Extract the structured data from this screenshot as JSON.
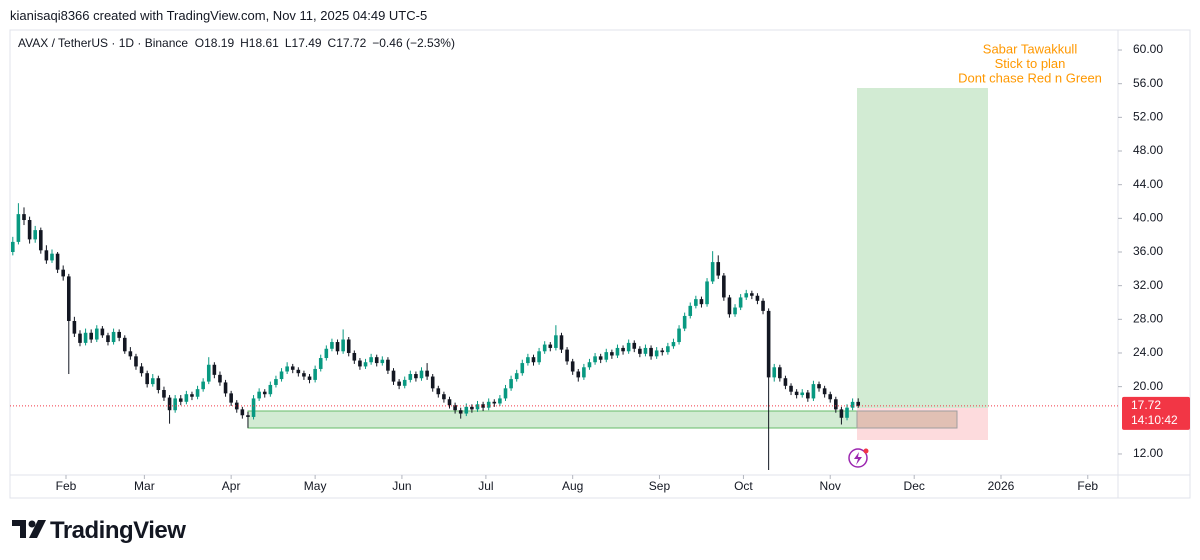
{
  "header": {
    "credit": "kianisaqi8366 created with TradingView.com, Nov 11, 2025 04:49 UTC-5",
    "symbol": "AVAX / TetherUS · 1D · Binance",
    "ohlc": [
      {
        "label": "O",
        "value": 18.19
      },
      {
        "label": "H",
        "value": 18.61
      },
      {
        "label": "L",
        "value": 17.49
      },
      {
        "label": "C",
        "value": 17.72
      }
    ],
    "change": "−0.46 (−2.53%)"
  },
  "footer": {
    "logo": "TradingView"
  },
  "chart_data": {
    "type": "candlestick",
    "annotation": [
      "Sabar Tawakkull",
      "Stick to plan",
      "Dont chase Red n Green"
    ],
    "up_color": "#089981",
    "down_color": "#131722",
    "annotation_color": "#ff9800",
    "last_price": 17.72,
    "countdown": "14:10:42",
    "last_price_color": "#f23645",
    "ylim": [
      9.5,
      62.38
    ],
    "yticks": [
      {
        "value": 12,
        "label": "12.00"
      },
      {
        "value": 20,
        "label": "20.00"
      },
      {
        "value": 24,
        "label": "24.00"
      },
      {
        "value": 28,
        "label": "28.00"
      },
      {
        "value": 32,
        "label": "32.00"
      },
      {
        "value": 36,
        "label": "36.00"
      },
      {
        "value": 40,
        "label": "40.00"
      },
      {
        "value": 44,
        "label": "44.00"
      },
      {
        "value": 48,
        "label": "48.00"
      },
      {
        "value": 52,
        "label": "52.00"
      },
      {
        "value": 56,
        "label": "56.00"
      },
      {
        "value": 60,
        "label": "60.00"
      }
    ],
    "xlim": [
      -0.5,
      197.4
    ],
    "xticks": [
      {
        "value": 9.5,
        "label": "Feb"
      },
      {
        "value": 23.5,
        "label": "Mar"
      },
      {
        "value": 39,
        "label": "Apr"
      },
      {
        "value": 54,
        "label": "May"
      },
      {
        "value": 69.5,
        "label": "Jun"
      },
      {
        "value": 84.5,
        "label": "Jul"
      },
      {
        "value": 100,
        "label": "Aug"
      },
      {
        "value": 115.5,
        "label": "Sep"
      },
      {
        "value": 130.5,
        "label": "Oct"
      },
      {
        "value": 146,
        "label": "Nov"
      },
      {
        "value": 161,
        "label": "Dec"
      },
      {
        "value": 176.5,
        "label": "2026"
      },
      {
        "value": 192,
        "label": "Feb"
      }
    ],
    "ohlc": [
      [
        36.0,
        37.8,
        35.6,
        37.2
      ],
      [
        37.2,
        41.8,
        36.9,
        40.5
      ],
      [
        40.5,
        41.3,
        39.2,
        39.8
      ],
      [
        39.8,
        40.2,
        37.0,
        37.5
      ],
      [
        37.5,
        39.1,
        37.1,
        38.6
      ],
      [
        38.6,
        38.9,
        35.8,
        36.2
      ],
      [
        36.2,
        36.8,
        34.6,
        35.0
      ],
      [
        35.0,
        36.3,
        34.7,
        35.8
      ],
      [
        35.8,
        36.0,
        33.5,
        33.9
      ],
      [
        33.9,
        34.4,
        32.6,
        33.1
      ],
      [
        33.1,
        33.4,
        21.5,
        27.8
      ],
      [
        27.8,
        28.3,
        25.9,
        26.3
      ],
      [
        26.3,
        26.7,
        24.8,
        25.2
      ],
      [
        25.2,
        26.9,
        24.9,
        26.4
      ],
      [
        26.4,
        26.8,
        25.2,
        25.6
      ],
      [
        25.6,
        27.3,
        25.3,
        26.9
      ],
      [
        26.9,
        27.2,
        25.8,
        26.1
      ],
      [
        26.1,
        26.4,
        24.9,
        25.3
      ],
      [
        25.3,
        26.9,
        25.0,
        26.5
      ],
      [
        26.5,
        26.8,
        25.4,
        25.8
      ],
      [
        25.8,
        26.1,
        23.9,
        24.2
      ],
      [
        24.2,
        24.7,
        23.2,
        23.6
      ],
      [
        23.6,
        23.9,
        22.0,
        22.4
      ],
      [
        22.4,
        22.8,
        21.2,
        21.6
      ],
      [
        21.6,
        21.9,
        19.9,
        20.3
      ],
      [
        20.3,
        21.5,
        20.0,
        21.0
      ],
      [
        21.0,
        21.3,
        19.2,
        19.6
      ],
      [
        19.6,
        20.0,
        18.3,
        18.7
      ],
      [
        18.7,
        19.0,
        15.6,
        17.2
      ],
      [
        17.2,
        19.0,
        16.9,
        18.6
      ],
      [
        18.6,
        19.0,
        17.8,
        18.2
      ],
      [
        18.2,
        19.5,
        17.9,
        19.1
      ],
      [
        19.1,
        19.4,
        18.4,
        18.8
      ],
      [
        18.8,
        20.1,
        18.5,
        19.7
      ],
      [
        19.7,
        21.0,
        19.4,
        20.6
      ],
      [
        20.6,
        23.5,
        20.3,
        22.6
      ],
      [
        22.6,
        22.9,
        21.0,
        21.4
      ],
      [
        21.4,
        21.8,
        20.1,
        20.5
      ],
      [
        20.5,
        20.8,
        18.8,
        19.2
      ],
      [
        19.2,
        19.5,
        17.7,
        18.1
      ],
      [
        18.1,
        18.4,
        16.9,
        17.3
      ],
      [
        17.3,
        17.6,
        16.2,
        16.6
      ],
      [
        16.6,
        17.0,
        15.1,
        16.4
      ],
      [
        16.4,
        19.0,
        16.1,
        18.6
      ],
      [
        18.6,
        19.8,
        18.3,
        19.4
      ],
      [
        19.4,
        19.7,
        18.7,
        19.1
      ],
      [
        19.1,
        20.6,
        18.8,
        20.2
      ],
      [
        20.2,
        21.3,
        19.9,
        20.9
      ],
      [
        20.9,
        22.2,
        20.6,
        21.8
      ],
      [
        21.8,
        22.9,
        21.5,
        22.4
      ],
      [
        22.4,
        22.7,
        21.6,
        22.0
      ],
      [
        22.0,
        22.3,
        21.2,
        21.6
      ],
      [
        21.6,
        21.9,
        20.8,
        21.2
      ],
      [
        21.2,
        21.5,
        20.4,
        20.8
      ],
      [
        20.8,
        22.5,
        20.5,
        22.1
      ],
      [
        22.1,
        23.8,
        21.8,
        23.4
      ],
      [
        23.4,
        24.9,
        23.1,
        24.5
      ],
      [
        24.5,
        25.7,
        24.2,
        25.3
      ],
      [
        25.3,
        25.6,
        23.8,
        24.2
      ],
      [
        24.2,
        26.8,
        23.9,
        25.6
      ],
      [
        25.6,
        25.9,
        23.6,
        24.0
      ],
      [
        24.0,
        24.3,
        22.7,
        23.1
      ],
      [
        23.1,
        23.4,
        22.0,
        22.4
      ],
      [
        22.4,
        23.3,
        22.1,
        22.9
      ],
      [
        22.9,
        23.9,
        22.6,
        23.5
      ],
      [
        23.5,
        23.8,
        22.4,
        22.8
      ],
      [
        22.8,
        23.6,
        22.5,
        23.2
      ],
      [
        23.2,
        23.5,
        21.5,
        21.9
      ],
      [
        21.9,
        22.2,
        20.2,
        20.6
      ],
      [
        20.6,
        20.9,
        19.7,
        20.1
      ],
      [
        20.1,
        21.2,
        19.8,
        20.8
      ],
      [
        20.8,
        21.9,
        20.5,
        21.5
      ],
      [
        21.5,
        21.8,
        20.6,
        21.0
      ],
      [
        21.0,
        22.3,
        20.7,
        21.9
      ],
      [
        21.9,
        22.8,
        20.8,
        21.2
      ],
      [
        21.2,
        21.5,
        19.4,
        19.8
      ],
      [
        19.8,
        20.1,
        18.7,
        19.1
      ],
      [
        19.1,
        19.4,
        18.1,
        18.5
      ],
      [
        18.5,
        18.8,
        17.4,
        17.8
      ],
      [
        17.8,
        18.1,
        16.8,
        17.2
      ],
      [
        17.2,
        17.5,
        16.2,
        16.8
      ],
      [
        16.8,
        18.0,
        16.5,
        17.6
      ],
      [
        17.6,
        17.9,
        16.9,
        17.3
      ],
      [
        17.3,
        18.3,
        17.0,
        17.9
      ],
      [
        17.9,
        18.2,
        17.1,
        17.5
      ],
      [
        17.5,
        18.6,
        17.2,
        18.2
      ],
      [
        18.2,
        18.5,
        17.6,
        18.0
      ],
      [
        18.0,
        19.0,
        17.7,
        18.6
      ],
      [
        18.6,
        20.2,
        18.3,
        19.8
      ],
      [
        19.8,
        21.3,
        19.5,
        20.9
      ],
      [
        20.9,
        22.0,
        20.6,
        21.6
      ],
      [
        21.6,
        23.2,
        21.3,
        22.8
      ],
      [
        22.8,
        23.9,
        22.5,
        23.5
      ],
      [
        23.5,
        23.8,
        22.5,
        22.9
      ],
      [
        22.9,
        24.6,
        22.6,
        24.2
      ],
      [
        24.2,
        25.4,
        23.9,
        25.0
      ],
      [
        25.0,
        25.3,
        24.2,
        24.6
      ],
      [
        24.6,
        27.3,
        24.3,
        26.1
      ],
      [
        26.1,
        26.4,
        24.0,
        24.4
      ],
      [
        24.4,
        24.7,
        22.6,
        23.0
      ],
      [
        23.0,
        23.3,
        21.4,
        21.8
      ],
      [
        21.8,
        22.1,
        20.6,
        21.1
      ],
      [
        21.1,
        22.7,
        20.8,
        22.3
      ],
      [
        22.3,
        23.3,
        22.0,
        22.9
      ],
      [
        22.9,
        24.0,
        22.6,
        23.6
      ],
      [
        23.6,
        23.9,
        22.8,
        23.2
      ],
      [
        23.2,
        24.5,
        22.9,
        24.1
      ],
      [
        24.1,
        24.4,
        23.3,
        23.7
      ],
      [
        23.7,
        25.0,
        23.4,
        24.6
      ],
      [
        24.6,
        24.9,
        23.8,
        24.2
      ],
      [
        24.2,
        25.6,
        23.9,
        25.2
      ],
      [
        25.2,
        25.5,
        24.1,
        24.5
      ],
      [
        24.5,
        24.8,
        23.5,
        23.9
      ],
      [
        23.9,
        25.0,
        23.6,
        24.6
      ],
      [
        24.6,
        24.9,
        23.2,
        23.6
      ],
      [
        23.6,
        24.7,
        23.3,
        24.3
      ],
      [
        24.3,
        24.6,
        23.7,
        24.1
      ],
      [
        24.1,
        25.2,
        23.8,
        24.8
      ],
      [
        24.8,
        25.7,
        24.5,
        25.3
      ],
      [
        25.3,
        27.3,
        25.0,
        26.9
      ],
      [
        26.9,
        28.8,
        26.6,
        28.4
      ],
      [
        28.4,
        30.0,
        28.1,
        29.6
      ],
      [
        29.6,
        30.8,
        29.3,
        30.4
      ],
      [
        30.4,
        30.7,
        29.4,
        29.8
      ],
      [
        29.8,
        32.9,
        29.5,
        32.5
      ],
      [
        32.5,
        36.1,
        32.2,
        34.8
      ],
      [
        34.8,
        35.6,
        32.8,
        33.2
      ],
      [
        33.2,
        33.5,
        30.2,
        30.6
      ],
      [
        30.6,
        30.9,
        28.2,
        28.6
      ],
      [
        28.6,
        29.8,
        28.3,
        29.4
      ],
      [
        29.4,
        31.0,
        29.1,
        30.6
      ],
      [
        30.6,
        31.5,
        30.3,
        31.1
      ],
      [
        31.1,
        31.4,
        30.4,
        30.8
      ],
      [
        30.8,
        31.1,
        29.8,
        30.2
      ],
      [
        30.2,
        30.5,
        28.6,
        29.0
      ],
      [
        29.0,
        29.3,
        10.1,
        21.1
      ],
      [
        21.1,
        22.7,
        20.6,
        22.3
      ],
      [
        22.3,
        22.6,
        20.6,
        21.0
      ],
      [
        21.0,
        21.3,
        19.7,
        20.1
      ],
      [
        20.1,
        20.4,
        19.0,
        19.4
      ],
      [
        19.4,
        19.7,
        18.6,
        19.0
      ],
      [
        19.0,
        19.7,
        18.7,
        19.3
      ],
      [
        19.3,
        19.6,
        18.2,
        18.6
      ],
      [
        18.6,
        20.7,
        18.3,
        20.3
      ],
      [
        20.3,
        20.6,
        19.4,
        19.8
      ],
      [
        19.8,
        20.1,
        18.7,
        19.1
      ],
      [
        19.1,
        19.4,
        18.1,
        18.5
      ],
      [
        18.5,
        18.8,
        16.9,
        17.3
      ],
      [
        17.3,
        17.6,
        15.5,
        16.3
      ],
      [
        16.3,
        17.9,
        16.0,
        17.5
      ],
      [
        17.5,
        18.6,
        17.2,
        18.19
      ],
      [
        18.19,
        18.61,
        17.49,
        17.72
      ]
    ]
  }
}
